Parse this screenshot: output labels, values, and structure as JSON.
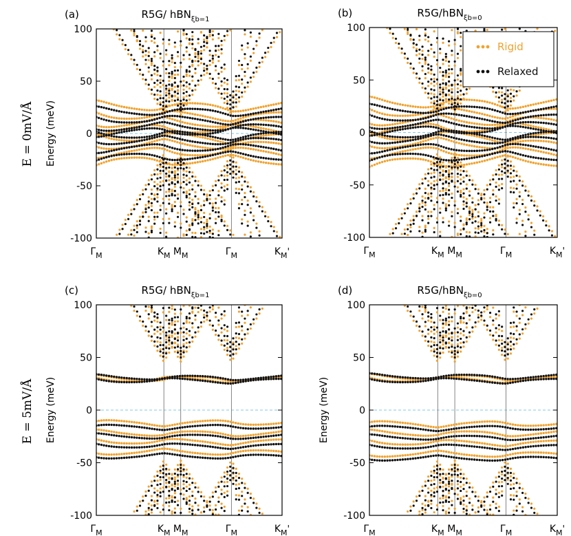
{
  "figure": {
    "row_labels": [
      "E = 0mV/Å",
      "E = 5mV/Å"
    ],
    "legend": [
      {
        "name": "Rigid",
        "color": "#f0a22e"
      },
      {
        "name": "Relaxed",
        "color": "#111111"
      }
    ],
    "colors": {
      "rigid": "#f0a22e",
      "relaxed": "#111111",
      "zero_line": "#7ec8e3",
      "kpath_line": "#666666"
    }
  },
  "chart_data": [
    {
      "type": "scatter",
      "panel": "(a)",
      "title": "R5G/ hBN",
      "title_subscript": "ξb=1",
      "ylabel": "Energy (meV)",
      "ylim": [
        -100,
        100
      ],
      "yticks": [
        "100",
        "50",
        "0",
        "-50",
        "-100"
      ],
      "xlim": [
        0,
        5.5
      ],
      "kpath_labels": [
        "ΓM",
        "KM",
        "MM",
        "ΓM",
        "KM'"
      ],
      "kpath_positions": [
        0,
        2,
        2.5,
        4,
        5.5
      ],
      "field_mV_per_A": 0,
      "series": [
        {
          "name": "Rigid",
          "dirac_ref": [
            2,
            0
          ],
          "gap": 0,
          "flat_energies": [
            26,
            17,
            10,
            4,
            -4,
            -11,
            -18,
            -26
          ],
          "flat_span": [
            0,
            5.5
          ],
          "dispersion": 23
        },
        {
          "name": "Relaxed",
          "dirac_ref": [
            2,
            0
          ],
          "gap": 0,
          "flat_energies": [
            21,
            13,
            6,
            1.5,
            -1.5,
            -7,
            -14,
            -22
          ],
          "flat_span": [
            0,
            5.5
          ],
          "dispersion": 20
        }
      ]
    },
    {
      "type": "scatter",
      "panel": "(b)",
      "title": "R5G/hBN",
      "title_subscript": "ξb=0",
      "ylabel": "",
      "ylim": [
        -100,
        100
      ],
      "yticks": [
        "100",
        "50",
        "0",
        "-50",
        "-100"
      ],
      "xlim": [
        0,
        5.5
      ],
      "kpath_labels": [
        "ΓM",
        "KM",
        "MM",
        "ΓM",
        "KM'"
      ],
      "kpath_positions": [
        0,
        2,
        2.5,
        4,
        5.5
      ],
      "field_mV_per_A": 0,
      "series": [
        {
          "name": "Rigid",
          "dirac_ref": [
            2,
            0
          ],
          "gap": 0,
          "flat_energies": [
            28,
            19,
            11,
            4,
            -4,
            -11,
            -19,
            -28
          ],
          "flat_span": [
            0,
            5.5
          ],
          "dispersion": 25
        },
        {
          "name": "Relaxed",
          "dirac_ref": [
            2,
            0
          ],
          "gap": 0,
          "flat_energies": [
            22,
            14,
            7,
            2,
            -2,
            -7,
            -15,
            -23
          ],
          "flat_span": [
            0,
            5.5
          ],
          "dispersion": 21
        }
      ]
    },
    {
      "type": "scatter",
      "panel": "(c)",
      "title": "R5G/ hBN",
      "title_subscript": "ξb=1",
      "ylabel": "Energy (meV)",
      "ylim": [
        -100,
        100
      ],
      "yticks": [
        "100",
        "50",
        "0",
        "-50",
        "-100"
      ],
      "xlim": [
        0,
        5.5
      ],
      "kpath_labels": [
        "ΓM",
        "KM",
        "MM",
        "ΓM",
        "KM'"
      ],
      "kpath_positions": [
        0,
        2,
        2.5,
        4,
        5.5
      ],
      "field_mV_per_A": 5,
      "series": [
        {
          "name": "Rigid",
          "dirac_ref": [
            2,
            0
          ],
          "gap": 28,
          "flat_energies": [
            30,
            29,
            -12,
            -22,
            -30,
            -40
          ],
          "flat_span": [
            0,
            5.5
          ],
          "dispersion": 14
        },
        {
          "name": "Relaxed",
          "dirac_ref": [
            2,
            0
          ],
          "gap": 28,
          "flat_energies": [
            31,
            28,
            -16,
            -25,
            -34,
            -44
          ],
          "flat_span": [
            0,
            5.5
          ],
          "dispersion": 12
        }
      ]
    },
    {
      "type": "scatter",
      "panel": "(d)",
      "title": "R5G/hBN",
      "title_subscript": "ξb=0",
      "ylabel": "Energy (meV)",
      "ylim": [
        -100,
        100
      ],
      "yticks": [
        "100",
        "50",
        "0",
        "-50",
        "-100"
      ],
      "xlim": [
        0,
        5.5
      ],
      "kpath_labels": [
        "ΓM",
        "KM",
        "MM",
        "ΓM",
        "KM'"
      ],
      "kpath_positions": [
        0,
        2,
        2.5,
        4,
        5.5
      ],
      "field_mV_per_A": 5,
      "series": [
        {
          "name": "Rigid",
          "dirac_ref": [
            2,
            0
          ],
          "gap": 28,
          "flat_energies": [
            31,
            29,
            -13,
            -22,
            -31,
            -42
          ],
          "flat_span": [
            0,
            5.5
          ],
          "dispersion": 14
        },
        {
          "name": "Relaxed",
          "dirac_ref": [
            2,
            0
          ],
          "gap": 28,
          "flat_energies": [
            32,
            28,
            -17,
            -26,
            -35,
            -46
          ],
          "flat_span": [
            0,
            5.5
          ],
          "dispersion": 12
        }
      ]
    }
  ]
}
